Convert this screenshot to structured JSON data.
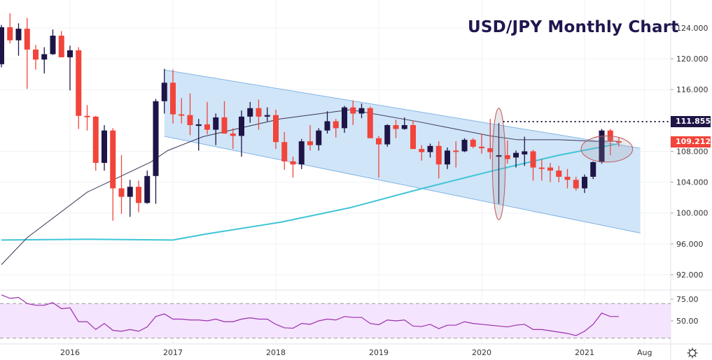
{
  "chart_data": {
    "type": "candlestick",
    "title": "USD/JPY Monthly Chart",
    "first_month": "2015-05",
    "ylim": [
      90.5,
      127.6
    ],
    "y_ticks": [
      "124.000",
      "120.000",
      "116.000",
      "108.000",
      "104.000",
      "100.000",
      "96.000",
      "92.000"
    ],
    "y_tick_values": [
      124,
      120,
      116,
      108,
      104,
      100,
      96,
      92
    ],
    "x_ticks": [
      {
        "label": "2016",
        "month_index": 8
      },
      {
        "label": "2017",
        "month_index": 20
      },
      {
        "label": "2018",
        "month_index": 32
      },
      {
        "label": "2019",
        "month_index": 44
      },
      {
        "label": "2020",
        "month_index": 56
      },
      {
        "label": "2021",
        "month_index": 68
      },
      {
        "label": "Aug",
        "month_index": 75
      }
    ],
    "colors": {
      "up": "#1e1446",
      "down": "#f1443a",
      "channel_fill": "#cde4f8",
      "channel_line": "#82b4e4",
      "ma_slow": "#3fc5d8",
      "ma_fast": "#3b3656",
      "rsi": "#9b2fae",
      "rsi_band": "#f4e4fd",
      "ellipse": "#c0555a"
    },
    "ohlc": [
      [
        119.3,
        124.4,
        118.9,
        124.1
      ],
      [
        124.1,
        125.9,
        122.0,
        122.4
      ],
      [
        122.4,
        124.6,
        120.4,
        123.9
      ],
      [
        123.9,
        125.3,
        116.1,
        121.2
      ],
      [
        121.2,
        121.8,
        118.6,
        119.9
      ],
      [
        119.9,
        121.5,
        118.1,
        120.6
      ],
      [
        120.6,
        123.8,
        120.5,
        123.0
      ],
      [
        123.0,
        123.6,
        120.2,
        120.2
      ],
      [
        120.2,
        121.7,
        115.9,
        121.1
      ],
      [
        121.1,
        121.5,
        110.9,
        112.6
      ],
      [
        112.6,
        114.0,
        110.7,
        112.5
      ],
      [
        112.5,
        112.6,
        105.5,
        106.5
      ],
      [
        106.5,
        111.4,
        105.5,
        110.7
      ],
      [
        110.7,
        111.0,
        99.0,
        103.2
      ],
      [
        103.2,
        107.5,
        99.9,
        102.1
      ],
      [
        102.1,
        104.3,
        99.5,
        103.4
      ],
      [
        103.4,
        104.2,
        100.1,
        101.3
      ],
      [
        101.3,
        105.5,
        101.2,
        104.8
      ],
      [
        104.8,
        114.8,
        101.2,
        114.5
      ],
      [
        114.5,
        118.7,
        112.9,
        116.9
      ],
      [
        116.9,
        118.6,
        111.6,
        112.8
      ],
      [
        112.8,
        114.9,
        111.6,
        112.7
      ],
      [
        112.7,
        115.5,
        110.1,
        111.4
      ],
      [
        111.3,
        112.2,
        108.1,
        111.5
      ],
      [
        111.5,
        114.4,
        110.2,
        110.8
      ],
      [
        110.8,
        112.9,
        108.8,
        112.4
      ],
      [
        112.4,
        114.5,
        110.6,
        110.3
      ],
      [
        110.3,
        111.0,
        108.3,
        110.0
      ],
      [
        110.0,
        113.3,
        107.3,
        112.5
      ],
      [
        112.5,
        114.4,
        111.7,
        113.6
      ],
      [
        113.6,
        114.7,
        110.8,
        112.5
      ],
      [
        112.5,
        113.7,
        111.9,
        112.7
      ],
      [
        112.7,
        113.4,
        108.3,
        109.2
      ],
      [
        109.2,
        110.5,
        105.6,
        106.7
      ],
      [
        106.7,
        107.3,
        104.6,
        106.3
      ],
      [
        106.3,
        109.6,
        105.7,
        109.3
      ],
      [
        109.3,
        111.4,
        108.1,
        108.8
      ],
      [
        108.8,
        111.0,
        108.1,
        110.7
      ],
      [
        110.7,
        113.2,
        110.3,
        111.9
      ],
      [
        111.9,
        112.2,
        109.8,
        111.0
      ],
      [
        111.0,
        113.9,
        110.4,
        113.7
      ],
      [
        113.7,
        114.6,
        111.4,
        112.9
      ],
      [
        112.9,
        114.2,
        112.3,
        113.6
      ],
      [
        113.6,
        113.8,
        109.9,
        109.7
      ],
      [
        109.7,
        110.0,
        104.6,
        108.9
      ],
      [
        108.9,
        111.5,
        108.6,
        111.4
      ],
      [
        111.4,
        112.1,
        109.7,
        110.9
      ],
      [
        110.9,
        112.4,
        110.8,
        111.4
      ],
      [
        111.4,
        112.0,
        108.3,
        108.3
      ],
      [
        108.3,
        108.8,
        106.8,
        107.9
      ],
      [
        107.9,
        109.0,
        107.2,
        108.7
      ],
      [
        108.7,
        109.3,
        104.5,
        106.3
      ],
      [
        106.3,
        108.5,
        105.7,
        108.1
      ],
      [
        108.1,
        109.3,
        105.9,
        108.0
      ],
      [
        108.0,
        109.7,
        107.9,
        109.5
      ],
      [
        109.5,
        109.7,
        108.4,
        108.6
      ],
      [
        108.6,
        110.3,
        107.7,
        108.4
      ],
      [
        108.4,
        112.2,
        107.0,
        107.9
      ],
      [
        107.3,
        111.7,
        101.2,
        107.5
      ],
      [
        107.5,
        109.4,
        106.4,
        107.0
      ],
      [
        107.2,
        108.1,
        105.9,
        107.8
      ],
      [
        107.6,
        109.9,
        106.1,
        108.0
      ],
      [
        108.0,
        108.2,
        104.2,
        105.9
      ],
      [
        105.9,
        107.0,
        104.2,
        105.8
      ],
      [
        105.9,
        106.5,
        104.0,
        105.5
      ],
      [
        105.5,
        106.1,
        104.0,
        104.7
      ],
      [
        104.7,
        105.7,
        103.2,
        104.3
      ],
      [
        104.3,
        104.7,
        102.9,
        103.2
      ],
      [
        103.2,
        105.0,
        102.6,
        104.7
      ],
      [
        104.7,
        106.7,
        104.4,
        106.6
      ],
      [
        106.6,
        110.9,
        106.4,
        110.7
      ],
      [
        110.7,
        110.9,
        107.5,
        109.3
      ],
      [
        109.3,
        109.8,
        108.6,
        109.2
      ]
    ],
    "ma_fast": [
      [
        0,
        93.3
      ],
      [
        3,
        96.8
      ],
      [
        10,
        102.7
      ],
      [
        17.4,
        106.6
      ],
      [
        19.4,
        108.1
      ],
      [
        23.5,
        109.9
      ],
      [
        32.5,
        112.2
      ],
      [
        40.7,
        113.4
      ],
      [
        48.8,
        111.8
      ],
      [
        57,
        110.0
      ],
      [
        60.2,
        109.5
      ],
      [
        65,
        109.5
      ],
      [
        69.2,
        109.3
      ],
      [
        72,
        109.3
      ]
    ],
    "ma_slow": [
      [
        0,
        96.5
      ],
      [
        10,
        96.6
      ],
      [
        20,
        96.5
      ],
      [
        24,
        97.3
      ],
      [
        32.5,
        98.8
      ],
      [
        40.7,
        100.7
      ],
      [
        48.8,
        103.1
      ],
      [
        57,
        105.4
      ],
      [
        65,
        107.5
      ],
      [
        72,
        109.0
      ]
    ],
    "channel": {
      "upper": [
        [
          19,
          118.56
        ],
        [
          74.5,
          108.4
        ]
      ],
      "lower": [
        [
          19,
          109.95
        ],
        [
          74.5,
          97.4
        ]
      ]
    },
    "resistance": {
      "value": 111.855,
      "label": "111.855",
      "from_month": 58.5
    },
    "last_price": {
      "value": 109.212,
      "label": "109.212"
    },
    "ellipses": [
      {
        "month": 58,
        "low": 99.1,
        "high": 113.6,
        "half_width_months": 0.75
      },
      {
        "month": 70.6,
        "low": 106.6,
        "high": 110.0,
        "half_width_months": 3.0
      }
    ],
    "rsi": {
      "ylim": [
        25,
        84
      ],
      "y_ticks": [
        "75.00",
        "50.00"
      ],
      "y_tick_values": [
        75,
        50
      ],
      "band": [
        30,
        70
      ],
      "values": [
        80,
        76,
        77,
        70,
        68,
        68,
        71,
        64,
        65,
        49,
        49,
        40,
        47,
        39,
        38,
        40,
        38,
        43,
        55,
        58,
        52,
        52,
        51,
        51,
        50,
        52,
        49,
        49,
        52,
        53.5,
        52,
        52,
        46,
        42,
        41.5,
        47,
        46,
        50,
        52,
        51,
        55,
        54,
        54,
        47,
        45.5,
        51,
        50,
        51,
        44,
        43.5,
        46,
        41,
        45,
        45,
        49,
        47,
        46,
        45,
        44,
        43,
        45,
        46,
        40,
        40,
        38.5,
        37,
        35.5,
        33,
        38,
        46,
        59,
        55,
        55
      ]
    }
  }
}
